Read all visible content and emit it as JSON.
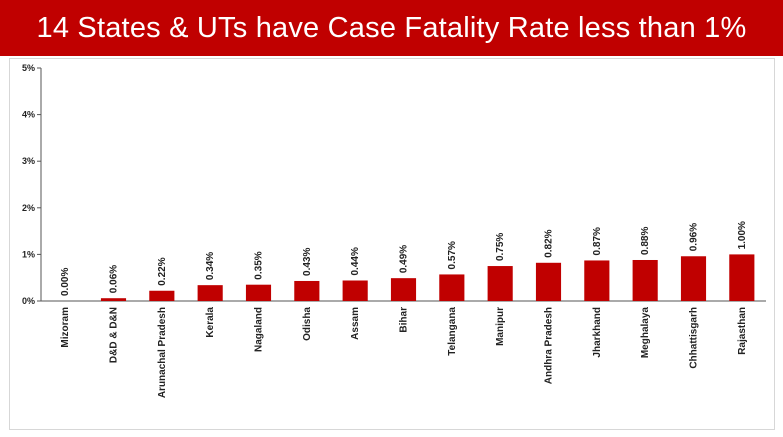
{
  "header": {
    "title": "14 States & UTs have Case Fatality Rate less than 1%"
  },
  "colors": {
    "title_bg": "#c00000",
    "bar": "#c00000"
  },
  "chart_data": {
    "type": "bar",
    "title": "14 States & UTs have Case Fatality Rate less than 1%",
    "xlabel": "",
    "ylabel": "",
    "ylim": [
      0,
      5
    ],
    "yticks": [
      0,
      1,
      2,
      3,
      4,
      5
    ],
    "ytick_labels": [
      "0%",
      "1%",
      "2%",
      "3%",
      "4%",
      "5%"
    ],
    "grid": false,
    "legend": "none",
    "categories": [
      "Mizoram",
      "D&D & D&N",
      "Arunachal Pradesh",
      "Kerala",
      "Nagaland",
      "Odisha",
      "Assam",
      "Bihar",
      "Telangana",
      "Manipur",
      "Andhra Pradesh",
      "Jharkhand",
      "Meghalaya",
      "Chhattisgarh",
      "Rajasthan"
    ],
    "values": [
      0.0,
      0.06,
      0.22,
      0.34,
      0.35,
      0.43,
      0.44,
      0.49,
      0.57,
      0.75,
      0.82,
      0.87,
      0.88,
      0.96,
      1.0
    ],
    "value_labels": [
      "0.00%",
      "0.06%",
      "0.22%",
      "0.34%",
      "0.35%",
      "0.43%",
      "0.44%",
      "0.49%",
      "0.57%",
      "0.75%",
      "0.82%",
      "0.87%",
      "0.88%",
      "0.96%",
      "1.00%"
    ]
  }
}
